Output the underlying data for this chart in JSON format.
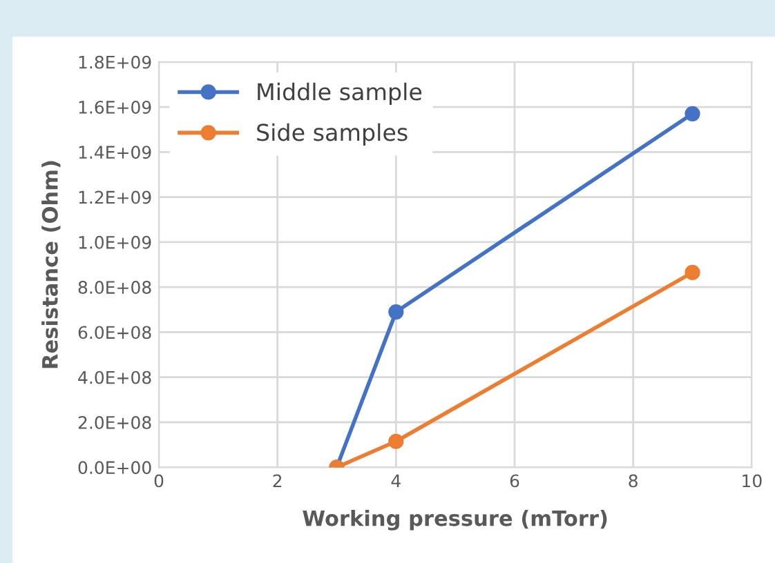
{
  "chart_data": {
    "type": "line",
    "xlabel": "Working pressure (mTorr)",
    "ylabel": "Resistance (Ohm)",
    "x": [
      3,
      4,
      9
    ],
    "series": [
      {
        "name": "Middle sample",
        "color": "#4472c4",
        "values": [
          0,
          690000000,
          1570000000
        ]
      },
      {
        "name": "Side samples",
        "color": "#ed7d31",
        "values": [
          0,
          115000000,
          865000000
        ]
      }
    ],
    "xlim": [
      0,
      10
    ],
    "xticks": [
      0,
      2,
      4,
      6,
      8,
      10
    ],
    "ylim": [
      0,
      1800000000
    ],
    "yticks": [
      {
        "value": 0,
        "label": "0.0E+00"
      },
      {
        "value": 200000000,
        "label": "2.0E+08"
      },
      {
        "value": 400000000,
        "label": "4.0E+08"
      },
      {
        "value": 600000000,
        "label": "6.0E+08"
      },
      {
        "value": 800000000,
        "label": "8.0E+08"
      },
      {
        "value": 1000000000,
        "label": "1.0E+09"
      },
      {
        "value": 1200000000,
        "label": "1.2E+09"
      },
      {
        "value": 1400000000,
        "label": "1.4E+09"
      },
      {
        "value": 1600000000,
        "label": "1.6E+09"
      },
      {
        "value": 1800000000,
        "label": "1.8E+09"
      }
    ],
    "grid": true,
    "legend": "top left",
    "marker": "circle",
    "line_style": "solid"
  }
}
